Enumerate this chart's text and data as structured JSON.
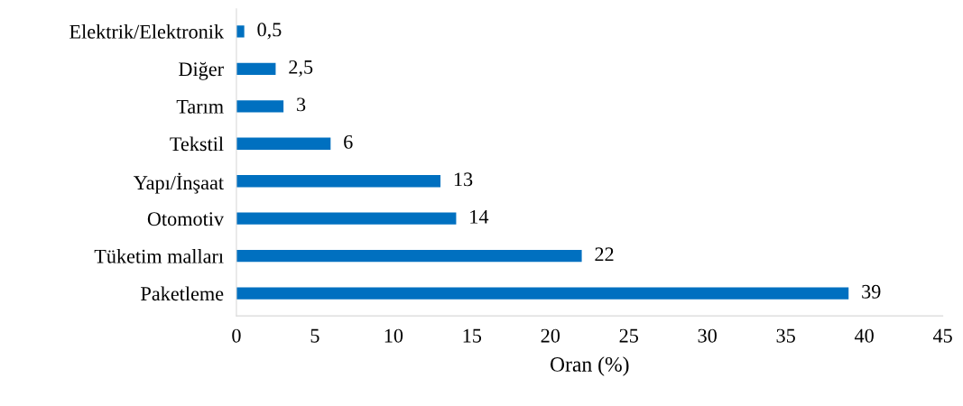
{
  "chart_data": {
    "type": "bar",
    "orientation": "horizontal",
    "categories": [
      "Elektrik/Elektronik",
      "Diğer",
      "Tarım",
      "Tekstil",
      "Yapı/İnşaat",
      "Otomotiv",
      "Tüketim malları",
      "Paketleme"
    ],
    "values": [
      0.5,
      2.5,
      3,
      6,
      13,
      14,
      22,
      39
    ],
    "value_labels": [
      "0,5",
      "2,5",
      "3",
      "6",
      "13",
      "14",
      "22",
      "39"
    ],
    "color": "#0070c0",
    "xlabel": "Oran (%)",
    "xlim": [
      0,
      45
    ],
    "xticks": [
      0,
      5,
      10,
      15,
      20,
      25,
      30,
      35,
      40,
      45
    ],
    "grid": false
  }
}
